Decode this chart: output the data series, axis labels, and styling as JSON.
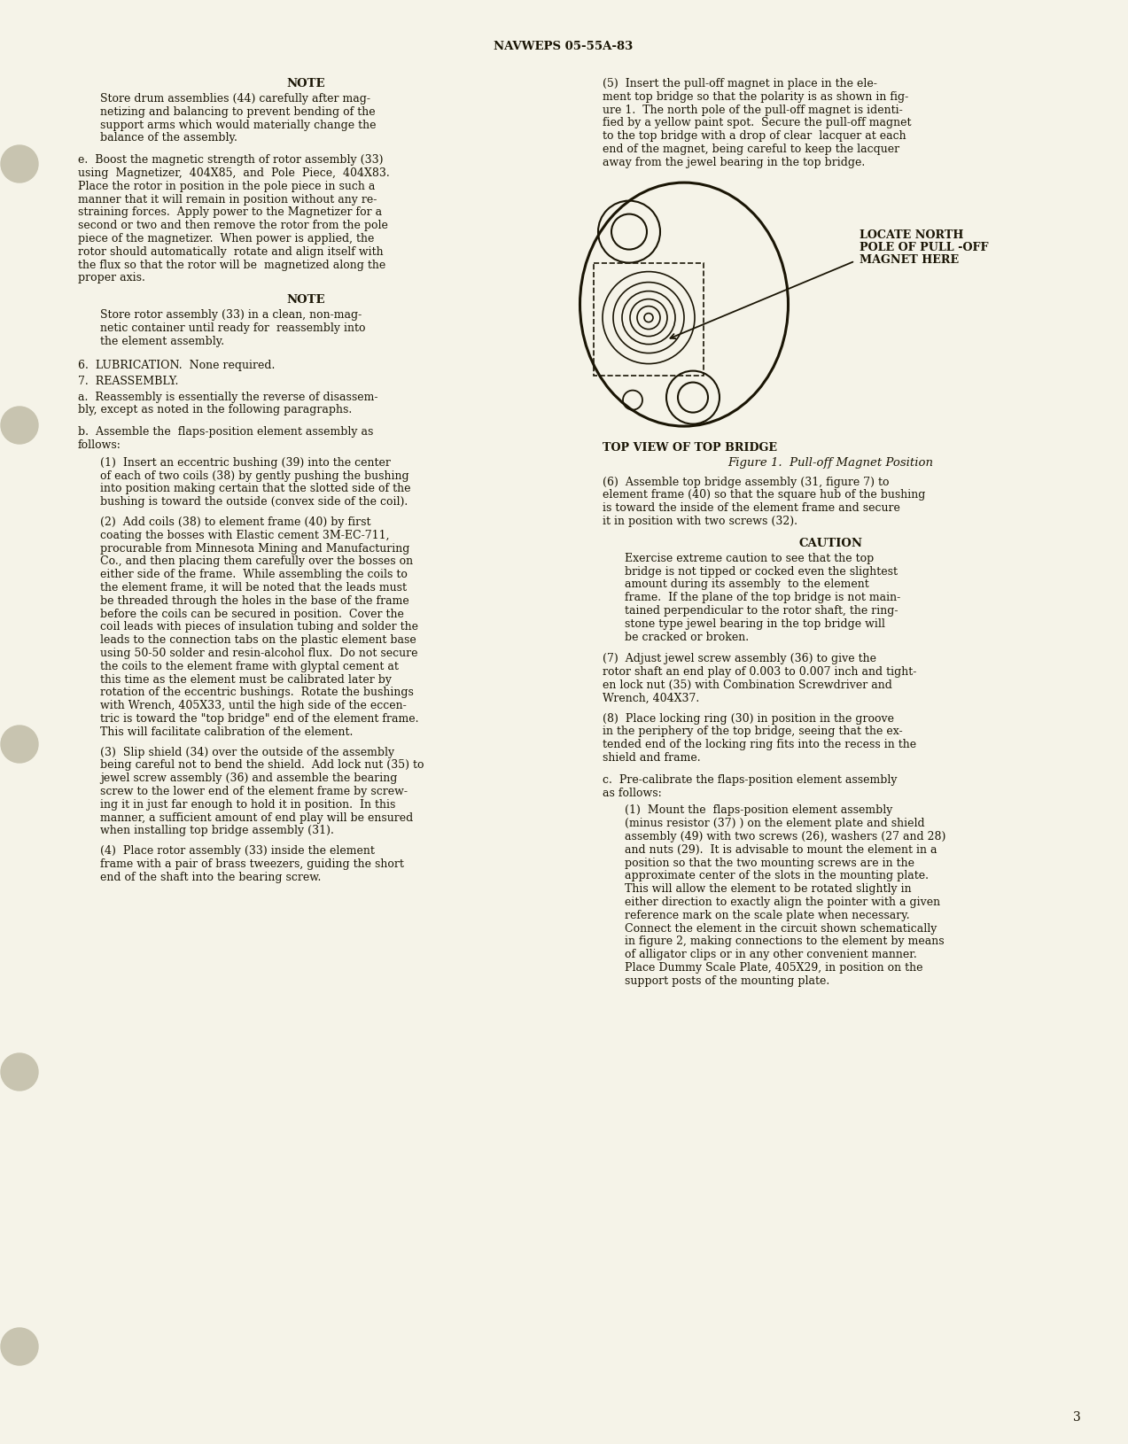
{
  "bg_color": "#f5f3e8",
  "text_color": "#1a1505",
  "header": "NAVWEPS 05-55A-83",
  "page_number": "3",
  "figure_caption_1": "TOP VIEW OF TOP BRIDGE",
  "figure_caption_2": "Figure 1.  Pull-off Magnet Position",
  "figure_annotation": "LOCATE NORTH\nPOLE OF PULL -OFF\nMAGNET HERE"
}
